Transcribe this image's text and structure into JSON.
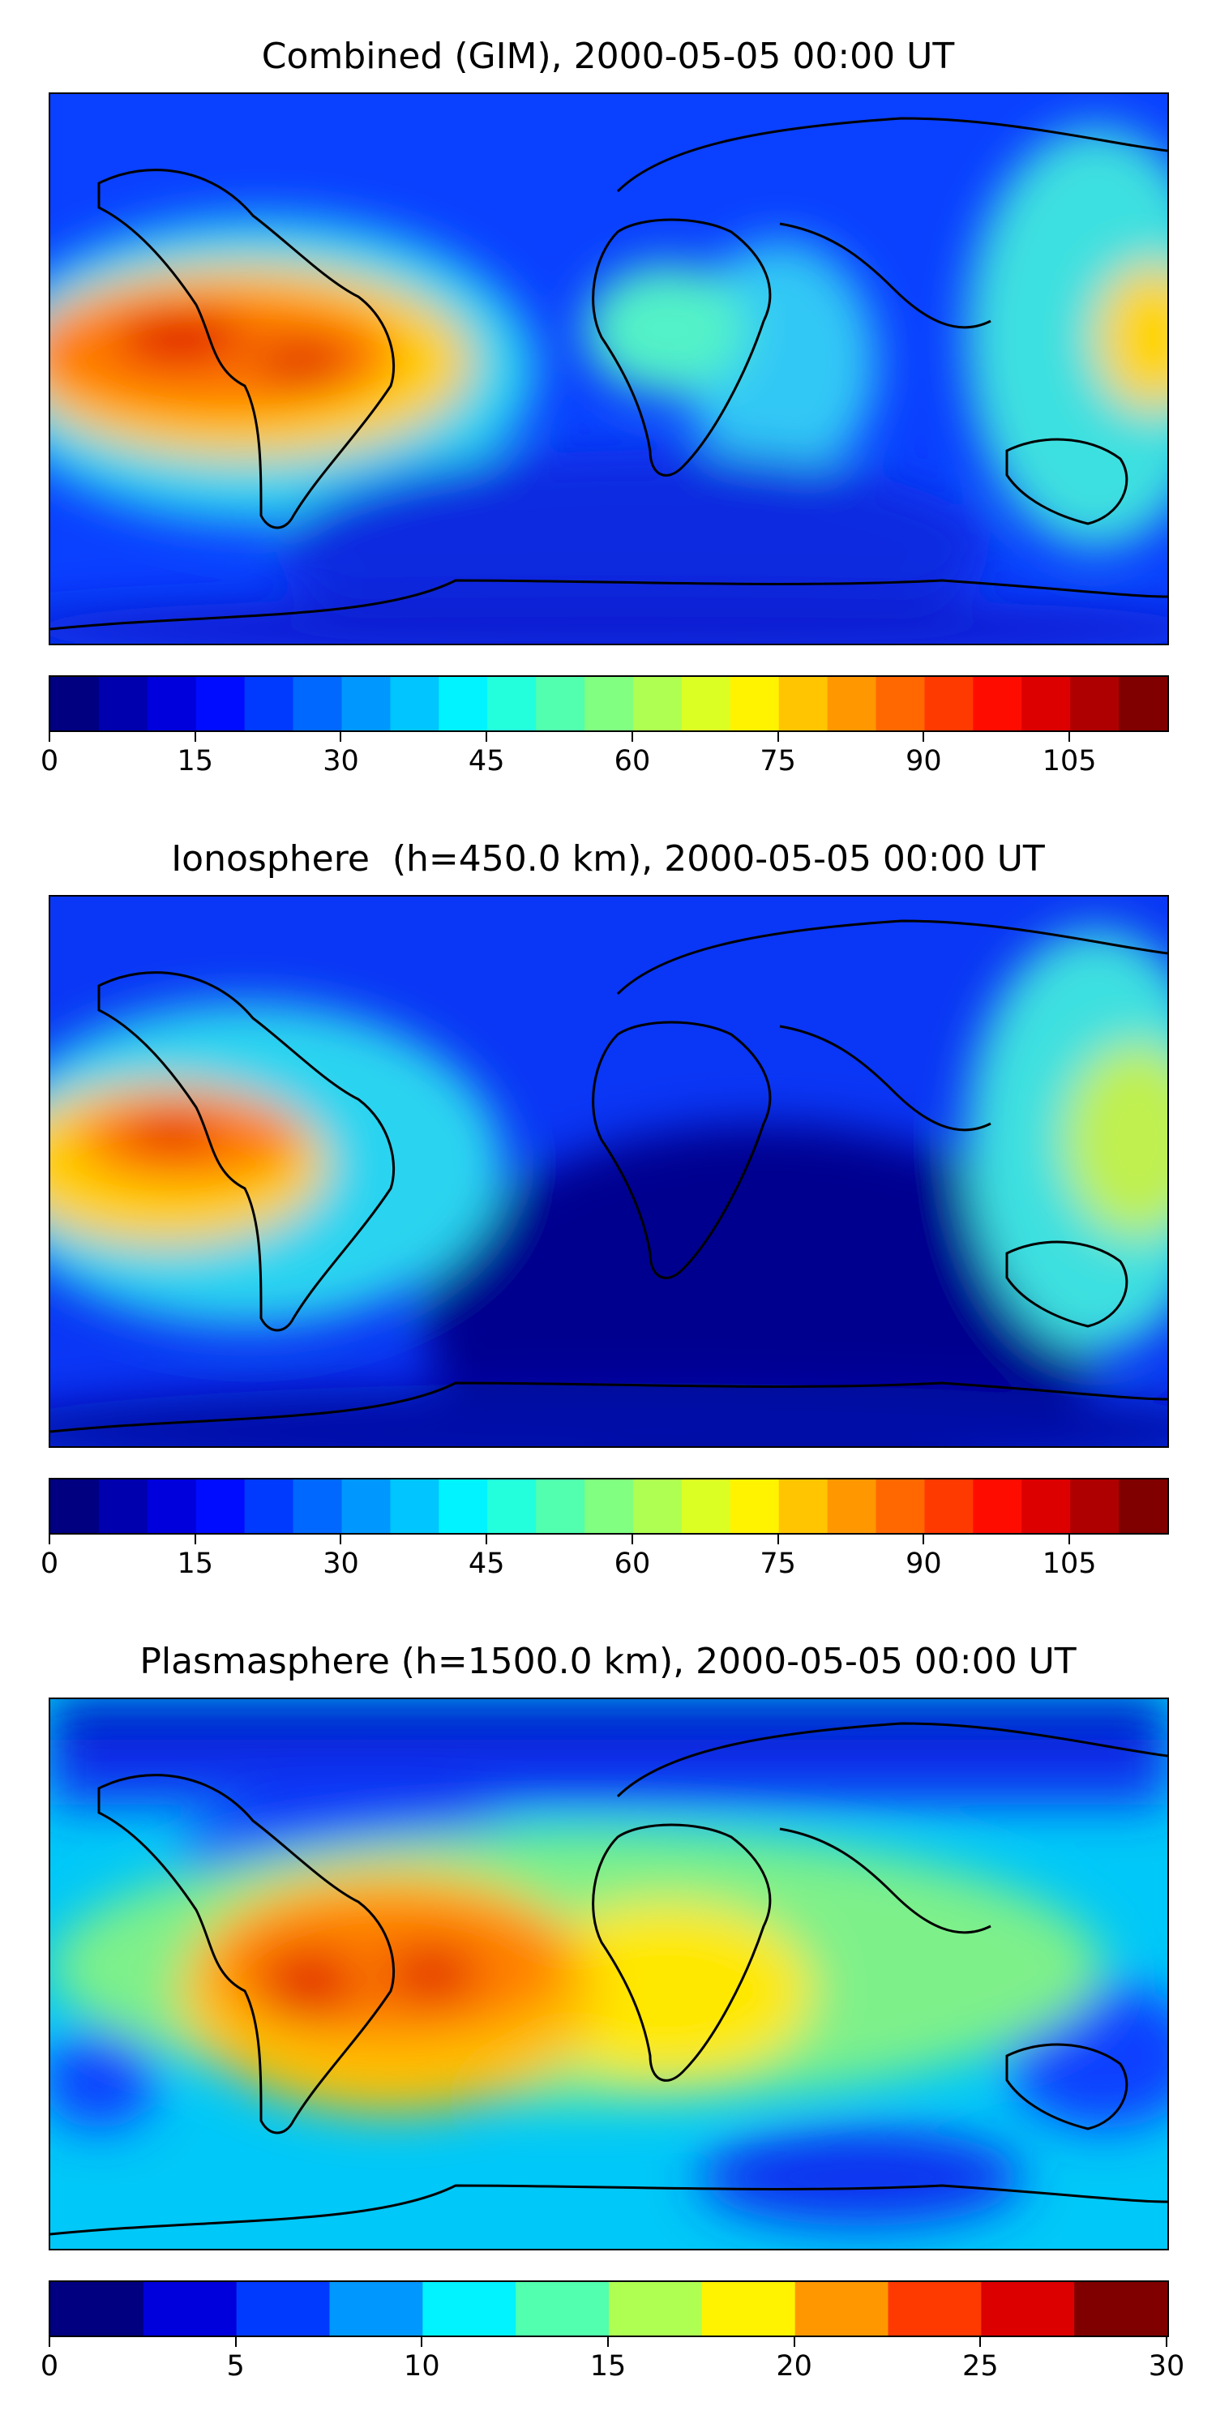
{
  "panels": [
    {
      "title": "Combined (GIM), 2000-05-05 00:00 UT",
      "colorbar": {
        "min": 0,
        "max": 115,
        "step": 5,
        "ticks": [
          "0",
          "15",
          "30",
          "45",
          "60",
          "75",
          "90",
          "105"
        ],
        "tick_values": [
          0,
          15,
          30,
          45,
          60,
          75,
          90,
          105
        ]
      }
    },
    {
      "title": "Ionosphere  (h=450.0 km), 2000-05-05 00:00 UT",
      "colorbar": {
        "min": 0,
        "max": 115,
        "step": 5,
        "ticks": [
          "0",
          "15",
          "30",
          "45",
          "60",
          "75",
          "90",
          "105"
        ],
        "tick_values": [
          0,
          15,
          30,
          45,
          60,
          75,
          90,
          105
        ]
      }
    },
    {
      "title": "Plasmasphere (h=1500.0 km), 2000-05-05 00:00 UT",
      "colorbar": {
        "min": 0,
        "max": 30,
        "step": 2.5,
        "ticks": [
          "0",
          "5",
          "10",
          "15",
          "20",
          "25",
          "30"
        ],
        "tick_values": [
          0,
          5,
          10,
          15,
          20,
          25,
          30
        ]
      }
    }
  ],
  "colormap": "jet"
}
